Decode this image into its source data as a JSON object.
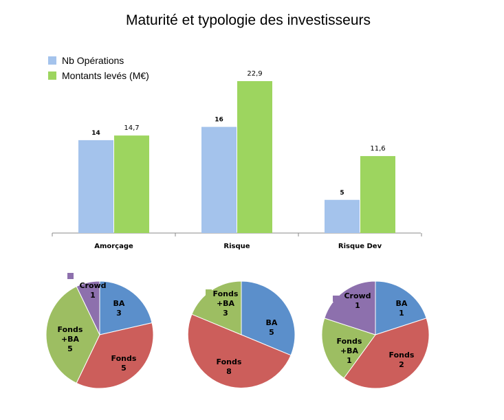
{
  "chart_data": [
    {
      "type": "bar",
      "title": "Maturité et typologie des investisseurs",
      "categories": [
        "Amorçage",
        "Risque",
        "Risque Dev"
      ],
      "series": [
        {
          "name": "Nb Opérations",
          "values": [
            14,
            16,
            5
          ],
          "labels": [
            "14",
            "16",
            "5"
          ],
          "color": "#a4c3ec"
        },
        {
          "name": "Montants levés (M€)",
          "values": [
            14.7,
            22.9,
            11.6
          ],
          "labels": [
            "14,7",
            "22,9",
            "11,6"
          ],
          "color": "#9dd55f"
        }
      ],
      "ylim": [
        0,
        25
      ],
      "grid": false,
      "legend": "top-left"
    },
    {
      "type": "pie",
      "slices": [
        {
          "name": "BA",
          "value": 3,
          "color": "#5b8fcb"
        },
        {
          "name": "Fonds",
          "value": 5,
          "color": "#cc5e5b"
        },
        {
          "name": "Fonds +BA",
          "value": 5,
          "color": "#9dbe62"
        },
        {
          "name": "Crowd",
          "value": 1,
          "color": "#8d70ad"
        }
      ]
    },
    {
      "type": "pie",
      "slices": [
        {
          "name": "BA",
          "value": 5,
          "color": "#5b8fcb"
        },
        {
          "name": "Fonds",
          "value": 8,
          "color": "#cc5e5b"
        },
        {
          "name": "Fonds +BA",
          "value": 3,
          "color": "#9dbe62"
        }
      ]
    },
    {
      "type": "pie",
      "slices": [
        {
          "name": "BA",
          "value": 1,
          "color": "#5b8fcb"
        },
        {
          "name": "Fonds",
          "value": 2,
          "color": "#cc5e5b"
        },
        {
          "name": "Fonds +BA",
          "value": 1,
          "color": "#9dbe62"
        },
        {
          "name": "Crowd",
          "value": 1,
          "color": "#8d70ad"
        }
      ]
    }
  ]
}
